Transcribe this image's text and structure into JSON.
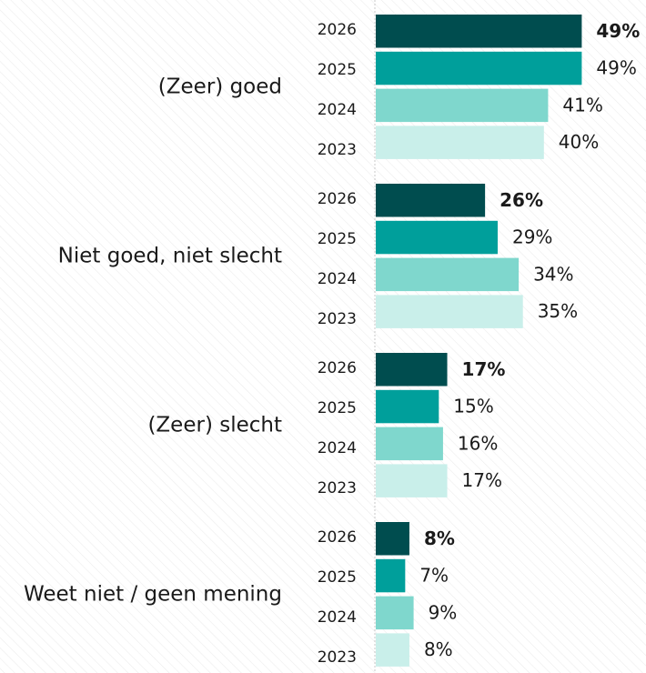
{
  "chart_data": {
    "type": "grouped-hbar",
    "categories": [
      "(Zeer) goed",
      "Niet goed, niet slecht",
      "(Zeer) slecht",
      "Weet niet / geen mening"
    ],
    "series": [
      {
        "name": "2026",
        "color": "#004d4f",
        "values": [
          49,
          26,
          17,
          8
        ],
        "value_labels": [
          "49%",
          "26%",
          "17%",
          "8%"
        ]
      },
      {
        "name": "2025",
        "color": "#009f9b",
        "values": [
          49,
          29,
          15,
          7
        ],
        "value_labels": [
          "49%",
          "29%",
          "15%",
          "7%"
        ]
      },
      {
        "name": "2024",
        "color": "#7fd7cd",
        "values": [
          41,
          34,
          16,
          9
        ],
        "value_labels": [
          "41%",
          "34%",
          "16%",
          "9%"
        ]
      },
      {
        "name": "2023",
        "color": "#c9efea",
        "values": [
          40,
          35,
          17,
          8
        ],
        "value_labels": [
          "40%",
          "35%",
          "17%",
          "8%"
        ]
      }
    ]
  }
}
